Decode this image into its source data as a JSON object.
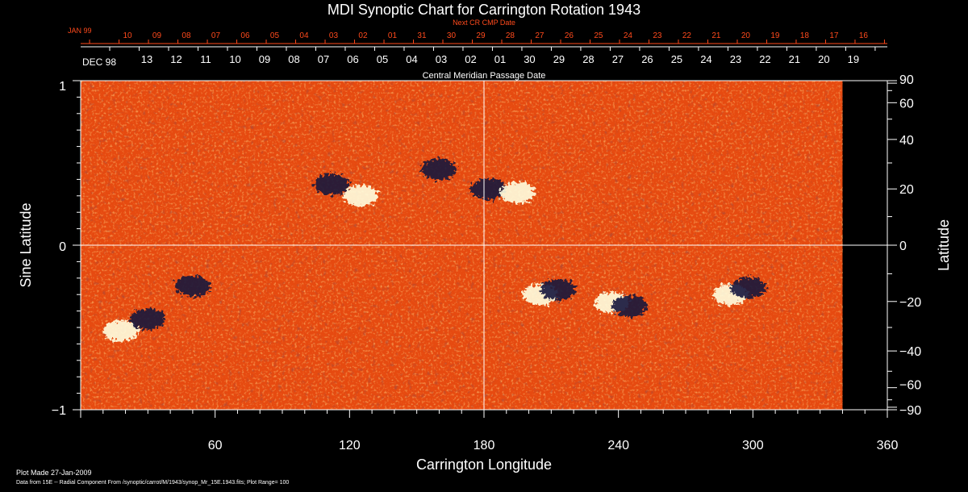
{
  "chart_data": {
    "type": "heatmap",
    "title": "MDI Synoptic Chart for Carrington Rotation 1943",
    "xlabel": "Carrington Longitude",
    "ylabel_left": "Sine Latitude",
    "ylabel_right": "Latitude",
    "xlim": [
      0,
      360
    ],
    "ylim_sine": [
      -1,
      1
    ],
    "x_ticks": [
      "60",
      "120",
      "180",
      "240",
      "300",
      "360"
    ],
    "y_ticks_left": [
      "1",
      "0",
      "−1"
    ],
    "y_ticks_right": [
      "90",
      "60",
      "40",
      "20",
      "0",
      "−20",
      "−40",
      "−60",
      "−90"
    ],
    "data_extent_longitude": 340,
    "plot_range": 100,
    "colors": {
      "background_field": "#e64a10",
      "positive_polarity": "#ffffe0",
      "negative_polarity": "#14143c",
      "top_axis_red": "#ff4a1c"
    },
    "top_axis_red": {
      "caption": "Next CR CMP Date",
      "start_label": "JAN 99",
      "labels": [
        "10",
        "09",
        "08",
        "07",
        "06",
        "05",
        "04",
        "03",
        "02",
        "01",
        "31",
        "30",
        "29",
        "28",
        "27",
        "26",
        "25",
        "24",
        "23",
        "22",
        "21",
        "20",
        "19",
        "18",
        "17",
        "16"
      ]
    },
    "top_axis_white": {
      "caption": "Central Meridian Passage Date",
      "start_label": "DEC 98",
      "labels": [
        "13",
        "12",
        "11",
        "10",
        "09",
        "08",
        "07",
        "06",
        "05",
        "04",
        "03",
        "02",
        "01",
        "30",
        "29",
        "28",
        "27",
        "26",
        "25",
        "24",
        "23",
        "22",
        "21",
        "20",
        "19"
      ]
    },
    "magnetic_regions": [
      {
        "lon": 112,
        "sinlat": 0.37,
        "polarity": "negative"
      },
      {
        "lon": 125,
        "sinlat": 0.3,
        "polarity": "positive"
      },
      {
        "lon": 160,
        "sinlat": 0.46,
        "polarity": "negative"
      },
      {
        "lon": 182,
        "sinlat": 0.34,
        "polarity": "negative"
      },
      {
        "lon": 195,
        "sinlat": 0.32,
        "polarity": "positive"
      },
      {
        "lon": 18,
        "sinlat": -0.52,
        "polarity": "positive"
      },
      {
        "lon": 30,
        "sinlat": -0.45,
        "polarity": "negative"
      },
      {
        "lon": 50,
        "sinlat": -0.25,
        "polarity": "negative"
      },
      {
        "lon": 205,
        "sinlat": -0.3,
        "polarity": "positive"
      },
      {
        "lon": 213,
        "sinlat": -0.27,
        "polarity": "negative"
      },
      {
        "lon": 237,
        "sinlat": -0.35,
        "polarity": "positive"
      },
      {
        "lon": 245,
        "sinlat": -0.37,
        "polarity": "negative"
      },
      {
        "lon": 290,
        "sinlat": -0.3,
        "polarity": "positive"
      },
      {
        "lon": 298,
        "sinlat": -0.26,
        "polarity": "negative"
      }
    ]
  },
  "footer": {
    "plot_made": "Plot Made 27-Jan-2009",
    "data_source": "Data from 15E -- Radial Component From /synoptic/carrot/M/1943/synop_Mr_15E.1943.fits; Plot Range=  100"
  }
}
